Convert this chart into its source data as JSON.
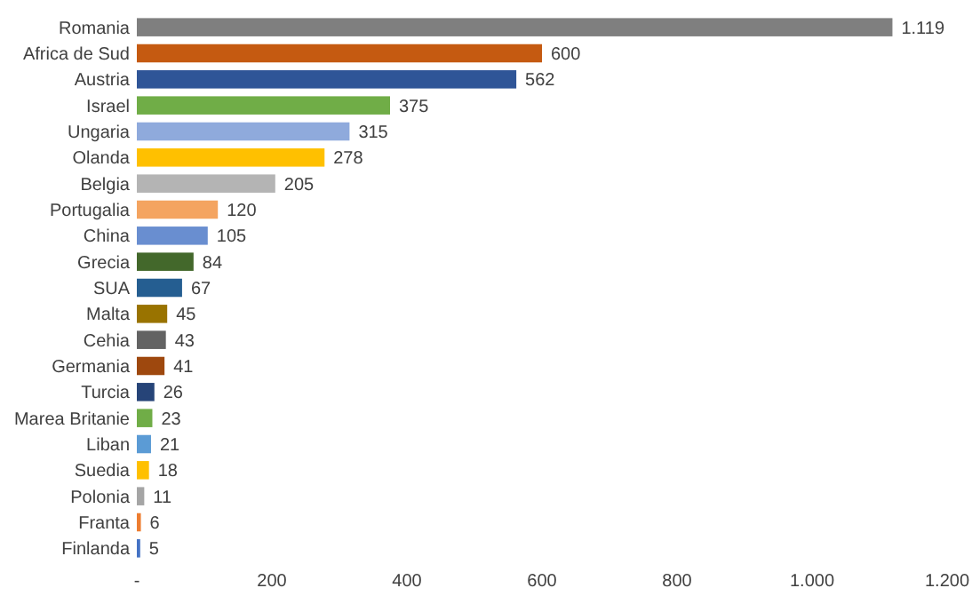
{
  "chart_data": {
    "type": "bar",
    "orientation": "horizontal",
    "categories": [
      "Romania",
      "Africa de Sud",
      "Austria",
      "Israel",
      "Ungaria",
      "Olanda",
      "Belgia",
      "Portugalia",
      "China",
      "Grecia",
      "SUA",
      "Malta",
      "Cehia",
      "Germania",
      "Turcia",
      "Marea Britanie",
      "Liban",
      "Suedia",
      "Polonia",
      "Franta",
      "Finlanda"
    ],
    "values": [
      1119,
      600,
      562,
      375,
      315,
      278,
      205,
      120,
      105,
      84,
      67,
      45,
      43,
      41,
      26,
      23,
      21,
      18,
      11,
      6,
      5
    ],
    "value_labels": [
      "1.119",
      "600",
      "562",
      "375",
      "315",
      "278",
      "205",
      "120",
      "105",
      "84",
      "67",
      "45",
      "43",
      "41",
      "26",
      "23",
      "21",
      "18",
      "11",
      "6",
      "5"
    ],
    "colors": [
      "#7f7f7f",
      "#c55a11",
      "#2f5597",
      "#70ad47",
      "#8faadc",
      "#ffc000",
      "#b4b4b4",
      "#f4a460",
      "#698ed0",
      "#43682b",
      "#255e91",
      "#997300",
      "#636363",
      "#9e480e",
      "#264478",
      "#70ad47",
      "#5b9bd5",
      "#ffc000",
      "#a5a5a5",
      "#ed7d31",
      "#4472c4"
    ],
    "xlim": [
      0,
      1200
    ],
    "xticks": [
      {
        "value": 0,
        "label": "-"
      },
      200,
      400,
      600,
      800,
      {
        "value": 1000,
        "label": "1.000"
      },
      {
        "value": 1200,
        "label": "1.200"
      }
    ],
    "grid": false
  }
}
